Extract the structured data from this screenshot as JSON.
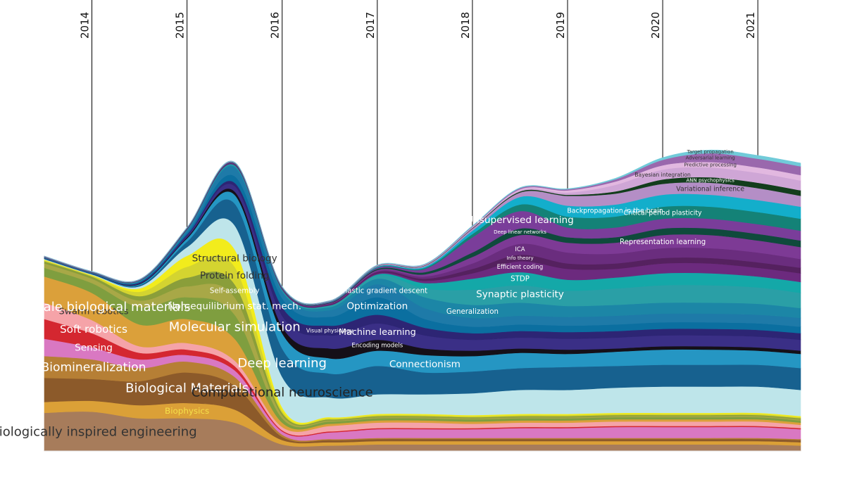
{
  "chart_data": {
    "type": "area",
    "subtype": "streamgraph",
    "title": "",
    "xlabel": "",
    "ylabel": "",
    "years": [
      "2014",
      "2015",
      "2016",
      "2017",
      "2018",
      "2019",
      "2020",
      "2021"
    ],
    "x": [
      2013.5,
      2014,
      2014.5,
      2015,
      2015.5,
      2016,
      2016.5,
      2017,
      2017.5,
      2018,
      2018.5,
      2019,
      2019.5,
      2020,
      2020.5,
      2021,
      2021.45
    ],
    "xlim": [
      2013.5,
      2021.45
    ],
    "grid": true,
    "series": [
      {
        "name": "Biologically inspired engineering",
        "color": "#a77c5b",
        "label_color": "#333333",
        "values": [
          3.5,
          3.6,
          3.0,
          3.0,
          2.6,
          0.6,
          0.5,
          0.6,
          0.6,
          0.6,
          0.6,
          0.6,
          0.6,
          0.6,
          0.6,
          0.6,
          0.5
        ]
      },
      {
        "name": "Biophysics",
        "color": "#dba037",
        "label_color": "#f5e04a",
        "values": [
          1.0,
          1.0,
          1.2,
          1.4,
          1.2,
          0.4,
          0.3,
          0.3,
          0.3,
          0.3,
          0.3,
          0.3,
          0.3,
          0.3,
          0.3,
          0.3,
          0.3
        ]
      },
      {
        "name": "Biological Materials",
        "color": "#8c5a2a",
        "label_color": "#ffffff",
        "values": [
          2.2,
          2.0,
          2.2,
          2.8,
          2.2,
          0.3,
          0.2,
          0.2,
          0.2,
          0.2,
          0.2,
          0.2,
          0.2,
          0.2,
          0.2,
          0.2,
          0.2
        ]
      },
      {
        "name": "Biomineralization",
        "color": "#b67f35",
        "label_color": "#ffffff",
        "values": [
          2.0,
          1.8,
          1.2,
          1.0,
          0.8,
          0.2,
          0.1,
          0.1,
          0.1,
          0.1,
          0.1,
          0.1,
          0.1,
          0.1,
          0.1,
          0.1,
          0.1
        ]
      },
      {
        "name": "Sensing",
        "color": "#d978c2",
        "label_color": "#ffffff",
        "values": [
          1.6,
          1.1,
          0.8,
          0.6,
          0.6,
          0.3,
          0.6,
          0.8,
          0.8,
          0.8,
          0.9,
          0.9,
          1.0,
          1.0,
          1.0,
          1.0,
          0.9
        ]
      },
      {
        "name": "Soft robotics",
        "color": "#d42730",
        "label_color": "#ffffff",
        "values": [
          1.8,
          1.3,
          0.6,
          0.5,
          0.4,
          0.1,
          0.1,
          0.1,
          0.1,
          0.1,
          0.1,
          0.1,
          0.1,
          0.1,
          0.1,
          0.1,
          0.1
        ]
      },
      {
        "name": "Swarm robotics",
        "color": "#f5a3a8",
        "label_color": "#333333",
        "values": [
          1.5,
          1.2,
          0.6,
          0.6,
          0.5,
          0.3,
          0.5,
          0.5,
          0.5,
          0.4,
          0.4,
          0.4,
          0.4,
          0.4,
          0.4,
          0.4,
          0.3
        ]
      },
      {
        "name": "Nanoscale biological materials",
        "color": "#dba03a",
        "label_color": "#ffffff",
        "values": [
          2.4,
          2.5,
          2.0,
          2.2,
          2.0,
          0.4,
          0.2,
          0.2,
          0.2,
          0.2,
          0.2,
          0.2,
          0.2,
          0.2,
          0.2,
          0.2,
          0.2
        ]
      },
      {
        "name": "Molecular simulation",
        "color": "#7f9e3f",
        "label_color": "#ffffff",
        "values": [
          0.8,
          0.9,
          1.6,
          2.0,
          2.2,
          0.4,
          0.2,
          0.2,
          0.2,
          0.2,
          0.2,
          0.2,
          0.2,
          0.2,
          0.2,
          0.2,
          0.2
        ]
      },
      {
        "name": "Non-equilibrium stat. mech.",
        "color": "#a8a847",
        "label_color": "#ffffff",
        "values": [
          0.4,
          0.4,
          0.6,
          1.0,
          1.6,
          0.3,
          0.1,
          0.1,
          0.1,
          0.1,
          0.1,
          0.1,
          0.1,
          0.1,
          0.1,
          0.1,
          0.1
        ]
      },
      {
        "name": "Self-assembly",
        "color": "#8a9e3a",
        "label_color": "#ffffff",
        "values": [
          0.2,
          0.2,
          0.4,
          0.8,
          1.2,
          0.2,
          0.1,
          0.1,
          0.1,
          0.1,
          0.1,
          0.1,
          0.1,
          0.1,
          0.1,
          0.1,
          0.1
        ]
      },
      {
        "name": "Protein folding",
        "color": "#d4d430",
        "label_color": "#333333",
        "values": [
          0.1,
          0.1,
          0.4,
          1.0,
          1.6,
          0.2,
          0.1,
          0.1,
          0.1,
          0.1,
          0.1,
          0.1,
          0.1,
          0.1,
          0.1,
          0.1,
          0.1
        ]
      },
      {
        "name": "Structural biology",
        "color": "#f2ec1c",
        "label_color": "#333333",
        "values": [
          0.05,
          0.05,
          0.3,
          1.0,
          1.6,
          0.3,
          0.1,
          0.1,
          0.1,
          0.1,
          0.1,
          0.1,
          0.1,
          0.1,
          0.1,
          0.1,
          0.1
        ]
      },
      {
        "name": "Computational neuroscience",
        "color": "#bee5ea",
        "label_color": "#222222",
        "values": [
          0.05,
          0.05,
          0.2,
          0.8,
          2.2,
          2.8,
          1.8,
          1.8,
          1.8,
          2.0,
          2.2,
          2.2,
          2.3,
          2.4,
          2.4,
          2.4,
          2.4
        ]
      },
      {
        "name": "Deep learning",
        "color": "#17618f",
        "label_color": "#ffffff",
        "values": [
          0.02,
          0.02,
          0.1,
          0.5,
          2.0,
          2.6,
          2.2,
          2.6,
          2.0,
          2.0,
          2.0,
          2.1,
          2.0,
          2.0,
          2.0,
          2.0,
          2.0
        ]
      },
      {
        "name": "Connectionism",
        "color": "#2596c3",
        "label_color": "#ffffff",
        "values": [
          0.02,
          0.02,
          0.1,
          0.3,
          0.8,
          1.4,
          1.4,
          1.4,
          1.6,
          1.4,
          1.4,
          1.2,
          1.3,
          1.4,
          1.4,
          1.3,
          1.3
        ]
      },
      {
        "name": "Encoding models",
        "color": "#151018",
        "label_color": "#ffffff",
        "values": [
          0.01,
          0.01,
          0.05,
          0.1,
          0.3,
          0.6,
          0.9,
          1.0,
          0.6,
          0.5,
          0.4,
          0.4,
          0.3,
          0.3,
          0.3,
          0.3,
          0.3
        ]
      },
      {
        "name": "Machine learning",
        "color": "#3a2f86",
        "label_color": "#ffffff",
        "values": [
          0.02,
          0.02,
          0.05,
          0.15,
          0.5,
          1.0,
          1.2,
          1.5,
          1.2,
          1.0,
          1.0,
          1.0,
          1.0,
          1.0,
          1.0,
          1.0,
          1.0
        ]
      },
      {
        "name": "Visual physiology",
        "color": "#2d2574",
        "label_color": "#ffffff",
        "values": [
          0.01,
          0.01,
          0.05,
          0.1,
          0.3,
          0.8,
          0.9,
          0.8,
          0.7,
          0.6,
          0.6,
          0.6,
          0.6,
          0.6,
          0.6,
          0.6,
          0.6
        ]
      },
      {
        "name": "Optimization",
        "color": "#0b6fa0",
        "label_color": "#ffffff",
        "values": [
          0.02,
          0.02,
          0.05,
          0.15,
          0.6,
          0.8,
          0.8,
          1.6,
          0.8,
          0.6,
          0.6,
          0.6,
          0.6,
          0.6,
          0.6,
          0.6,
          0.6
        ]
      },
      {
        "name": "Stochastic gradient descent",
        "color": "#1e7aa8",
        "label_color": "#ffffff",
        "values": [
          0.01,
          0.01,
          0.05,
          0.2,
          0.8,
          0.6,
          0.6,
          1.2,
          1.0,
          0.8,
          0.8,
          0.8,
          0.8,
          0.8,
          0.8,
          0.8,
          0.8
        ]
      },
      {
        "name": "Generalization",
        "color": "#1c86a6",
        "label_color": "#ffffff",
        "values": [
          0.01,
          0.01,
          0.02,
          0.05,
          0.1,
          0.1,
          0.3,
          0.5,
          1.0,
          1.2,
          1.2,
          1.0,
          1.0,
          1.0,
          1.0,
          1.0,
          0.9
        ]
      },
      {
        "name": "Synaptic plasticity",
        "color": "#2a9fa6",
        "label_color": "#ffffff",
        "values": [
          0.01,
          0.01,
          0.02,
          0.03,
          0.05,
          0.05,
          0.1,
          0.3,
          0.8,
          1.4,
          1.6,
          1.4,
          1.5,
          1.6,
          1.6,
          1.5,
          1.4
        ]
      },
      {
        "name": "STDP",
        "color": "#14a8a8",
        "label_color": "#ffffff",
        "values": [
          0.01,
          0.01,
          0.02,
          0.03,
          0.05,
          0.05,
          0.05,
          0.1,
          0.5,
          1.0,
          1.2,
          1.0,
          1.0,
          1.1,
          1.1,
          1.0,
          1.0
        ]
      },
      {
        "name": "Efficient coding",
        "color": "#6c2a7e",
        "label_color": "#ffffff",
        "values": [
          0.01,
          0.01,
          0.01,
          0.02,
          0.03,
          0.03,
          0.05,
          0.1,
          0.2,
          0.5,
          1.0,
          1.0,
          0.8,
          0.9,
          0.9,
          0.8,
          0.8
        ]
      },
      {
        "name": "Info theory",
        "color": "#55215f",
        "label_color": "#ffffff",
        "values": [
          0.01,
          0.01,
          0.01,
          0.02,
          0.03,
          0.03,
          0.05,
          0.1,
          0.2,
          0.4,
          0.6,
          0.5,
          0.5,
          0.5,
          0.5,
          0.5,
          0.5
        ]
      },
      {
        "name": "ICA",
        "color": "#6a2d7e",
        "label_color": "#ffffff",
        "values": [
          0.01,
          0.01,
          0.01,
          0.02,
          0.03,
          0.03,
          0.05,
          0.1,
          0.2,
          0.5,
          1.0,
          1.0,
          0.9,
          0.9,
          0.9,
          0.9,
          0.8
        ]
      },
      {
        "name": "Representation learning",
        "color": "#7d3a95",
        "label_color": "#ffffff",
        "values": [
          0.01,
          0.01,
          0.01,
          0.02,
          0.03,
          0.03,
          0.05,
          0.1,
          0.2,
          0.6,
          0.8,
          0.9,
          1.0,
          1.2,
          1.2,
          1.1,
          1.1
        ]
      },
      {
        "name": "Deep linear networks",
        "color": "#0f4a3c",
        "label_color": "#ffffff",
        "values": [
          0.01,
          0.01,
          0.01,
          0.02,
          0.03,
          0.03,
          0.05,
          0.1,
          0.2,
          0.4,
          0.6,
          0.5,
          0.5,
          0.6,
          0.6,
          0.6,
          0.6
        ]
      },
      {
        "name": "Unsupervised learning",
        "color": "#7a3d9a",
        "label_color": "#ffffff",
        "values": [
          0.01,
          0.01,
          0.01,
          0.02,
          0.03,
          0.03,
          0.05,
          0.1,
          0.3,
          1.4,
          1.6,
          0.9,
          0.9,
          0.9,
          0.9,
          0.9,
          0.9
        ]
      },
      {
        "name": "Critical period plasticity",
        "color": "#148277",
        "label_color": "#ffffff",
        "values": [
          0.01,
          0.01,
          0.01,
          0.01,
          0.02,
          0.02,
          0.03,
          0.05,
          0.1,
          0.3,
          0.6,
          1.0,
          1.0,
          1.1,
          1.1,
          1.1,
          1.1
        ]
      },
      {
        "name": "Backpropagation in the brain",
        "color": "#13aecb",
        "label_color": "#ffffff",
        "values": [
          0.01,
          0.01,
          0.01,
          0.01,
          0.02,
          0.02,
          0.03,
          0.05,
          0.1,
          0.3,
          0.7,
          1.0,
          1.1,
          1.1,
          1.1,
          1.1,
          1.1
        ]
      },
      {
        "name": "Variational inference",
        "color": "#b48ec6",
        "label_color": "#333333",
        "values": [
          0.01,
          0.01,
          0.01,
          0.01,
          0.02,
          0.02,
          0.03,
          0.05,
          0.1,
          0.2,
          0.4,
          0.9,
          1.0,
          1.0,
          1.1,
          1.1,
          1.0
        ]
      },
      {
        "name": "ANN psychophysics",
        "color": "#133d1c",
        "label_color": "#ffffff",
        "values": [
          0.01,
          0.01,
          0.01,
          0.01,
          0.01,
          0.01,
          0.01,
          0.02,
          0.03,
          0.05,
          0.1,
          0.1,
          0.2,
          0.4,
          0.5,
          0.5,
          0.5
        ]
      },
      {
        "name": "Bayesian integration",
        "color": "#cfa6d6",
        "label_color": "#333333",
        "values": [
          0.01,
          0.01,
          0.01,
          0.01,
          0.01,
          0.01,
          0.01,
          0.02,
          0.03,
          0.05,
          0.1,
          0.2,
          0.6,
          0.9,
          0.9,
          0.9,
          0.9
        ]
      },
      {
        "name": "Predictive processing",
        "color": "#e2b8e0",
        "label_color": "#333333",
        "values": [
          0.01,
          0.01,
          0.01,
          0.01,
          0.01,
          0.01,
          0.01,
          0.02,
          0.03,
          0.05,
          0.1,
          0.2,
          0.3,
          0.4,
          0.5,
          0.5,
          0.5
        ]
      },
      {
        "name": "Adversarial learning",
        "color": "#9a68ad",
        "label_color": "#333333",
        "values": [
          0.01,
          0.01,
          0.01,
          0.01,
          0.01,
          0.01,
          0.01,
          0.02,
          0.03,
          0.05,
          0.1,
          0.1,
          0.2,
          0.5,
          0.8,
          0.8,
          0.8
        ]
      },
      {
        "name": "Target propagation",
        "color": "#71cbd9",
        "label_color": "#333333",
        "values": [
          0.01,
          0.01,
          0.01,
          0.01,
          0.01,
          0.01,
          0.01,
          0.02,
          0.03,
          0.05,
          0.05,
          0.05,
          0.1,
          0.2,
          0.3,
          0.3,
          0.3
        ]
      }
    ]
  }
}
